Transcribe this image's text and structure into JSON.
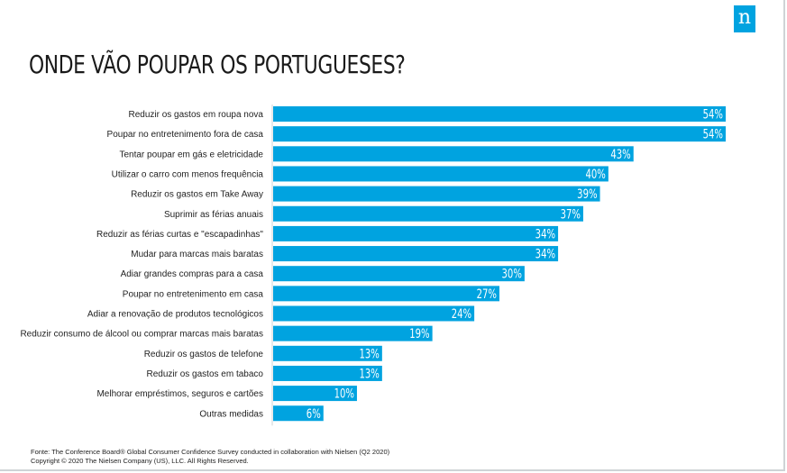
{
  "brand": {
    "logo_text": "n"
  },
  "header": {
    "title": "ONDE VÃO POUPAR OS PORTUGUESES?"
  },
  "chart_data": {
    "type": "bar",
    "orientation": "horizontal",
    "categories": [
      "Reduzir os gastos em roupa nova",
      "Poupar no entretenimento fora de casa",
      "Tentar poupar em gás e eletricidade",
      "Utilizar o carro com menos frequência",
      "Reduzir os gastos em Take Away",
      "Suprimir as férias anuais",
      "Reduzir as férias curtas e \"escapadinhas\"",
      "Mudar para marcas mais baratas",
      "Adiar grandes compras para a casa",
      "Poupar no entretenimento em casa",
      "Adiar a renovação de produtos tecnológicos",
      "Reduzir consumo de álcool ou comprar marcas mais baratas",
      "Reduzir os gastos de telefone",
      "Reduzir os gastos em tabaco",
      "Melhorar empréstimos, seguros e cartões",
      "Outras medidas"
    ],
    "values": [
      54,
      54,
      43,
      40,
      39,
      37,
      34,
      34,
      30,
      27,
      24,
      19,
      13,
      13,
      10,
      6
    ],
    "value_labels": [
      "54%",
      "54%",
      "43%",
      "40%",
      "39%",
      "37%",
      "34%",
      "34%",
      "30%",
      "27%",
      "24%",
      "19%",
      "13%",
      "13%",
      "10%",
      "6%"
    ],
    "xlim": [
      0,
      54
    ],
    "grid": false,
    "legend": "none",
    "bar_color": "#00a3e0",
    "axis_color": "#cfd3d6"
  },
  "footer": {
    "source": "Fonte:  The Conference Board® Global Consumer Confidence Survey conducted in collaboration with Nielsen (Q2 2020)",
    "copyright": "Copyright © 2020 The Nielsen Company (US), LLC. All Rights Reserved."
  }
}
